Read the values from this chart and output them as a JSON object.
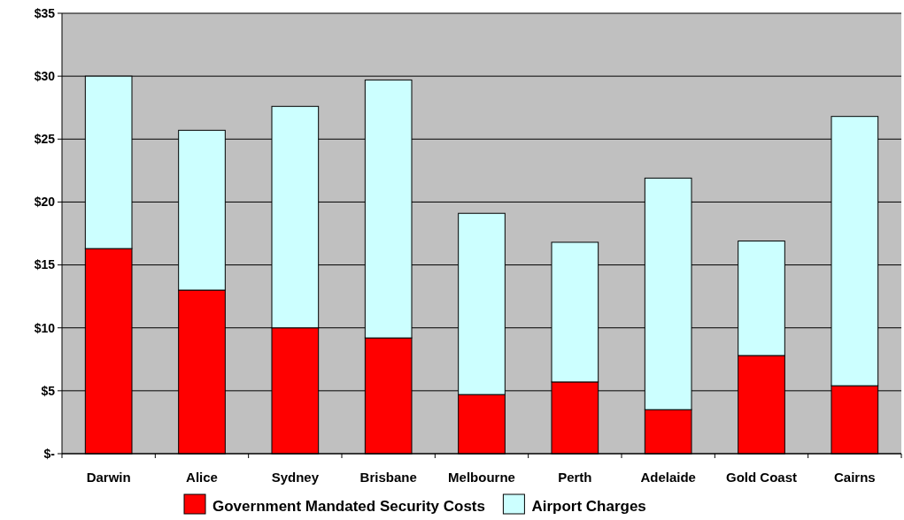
{
  "chart_data": {
    "type": "bar",
    "stacked": true,
    "categories": [
      "Darwin",
      "Alice",
      "Sydney",
      "Brisbane",
      "Melbourne",
      "Perth",
      "Adelaide",
      "Gold Coast",
      "Cairns"
    ],
    "series": [
      {
        "name": "Government Mandated Security Costs",
        "color": "#ff0000",
        "values": [
          16.3,
          13.0,
          10.0,
          9.2,
          4.7,
          5.7,
          3.5,
          7.8,
          5.4
        ]
      },
      {
        "name": "Airport Charges",
        "color": "#ccffff",
        "values": [
          13.7,
          12.7,
          17.6,
          20.5,
          14.4,
          11.1,
          18.4,
          9.1,
          21.4
        ]
      }
    ],
    "ylim": [
      0,
      35
    ],
    "yticks": [
      {
        "value": 0,
        "label": "$-"
      },
      {
        "value": 5,
        "label": "$5"
      },
      {
        "value": 10,
        "label": "$10"
      },
      {
        "value": 15,
        "label": "$15"
      },
      {
        "value": 20,
        "label": "$20"
      },
      {
        "value": 25,
        "label": "$25"
      },
      {
        "value": 30,
        "label": "$30"
      },
      {
        "value": 35,
        "label": "$35"
      }
    ],
    "grid": "y",
    "legend": "bottom"
  }
}
